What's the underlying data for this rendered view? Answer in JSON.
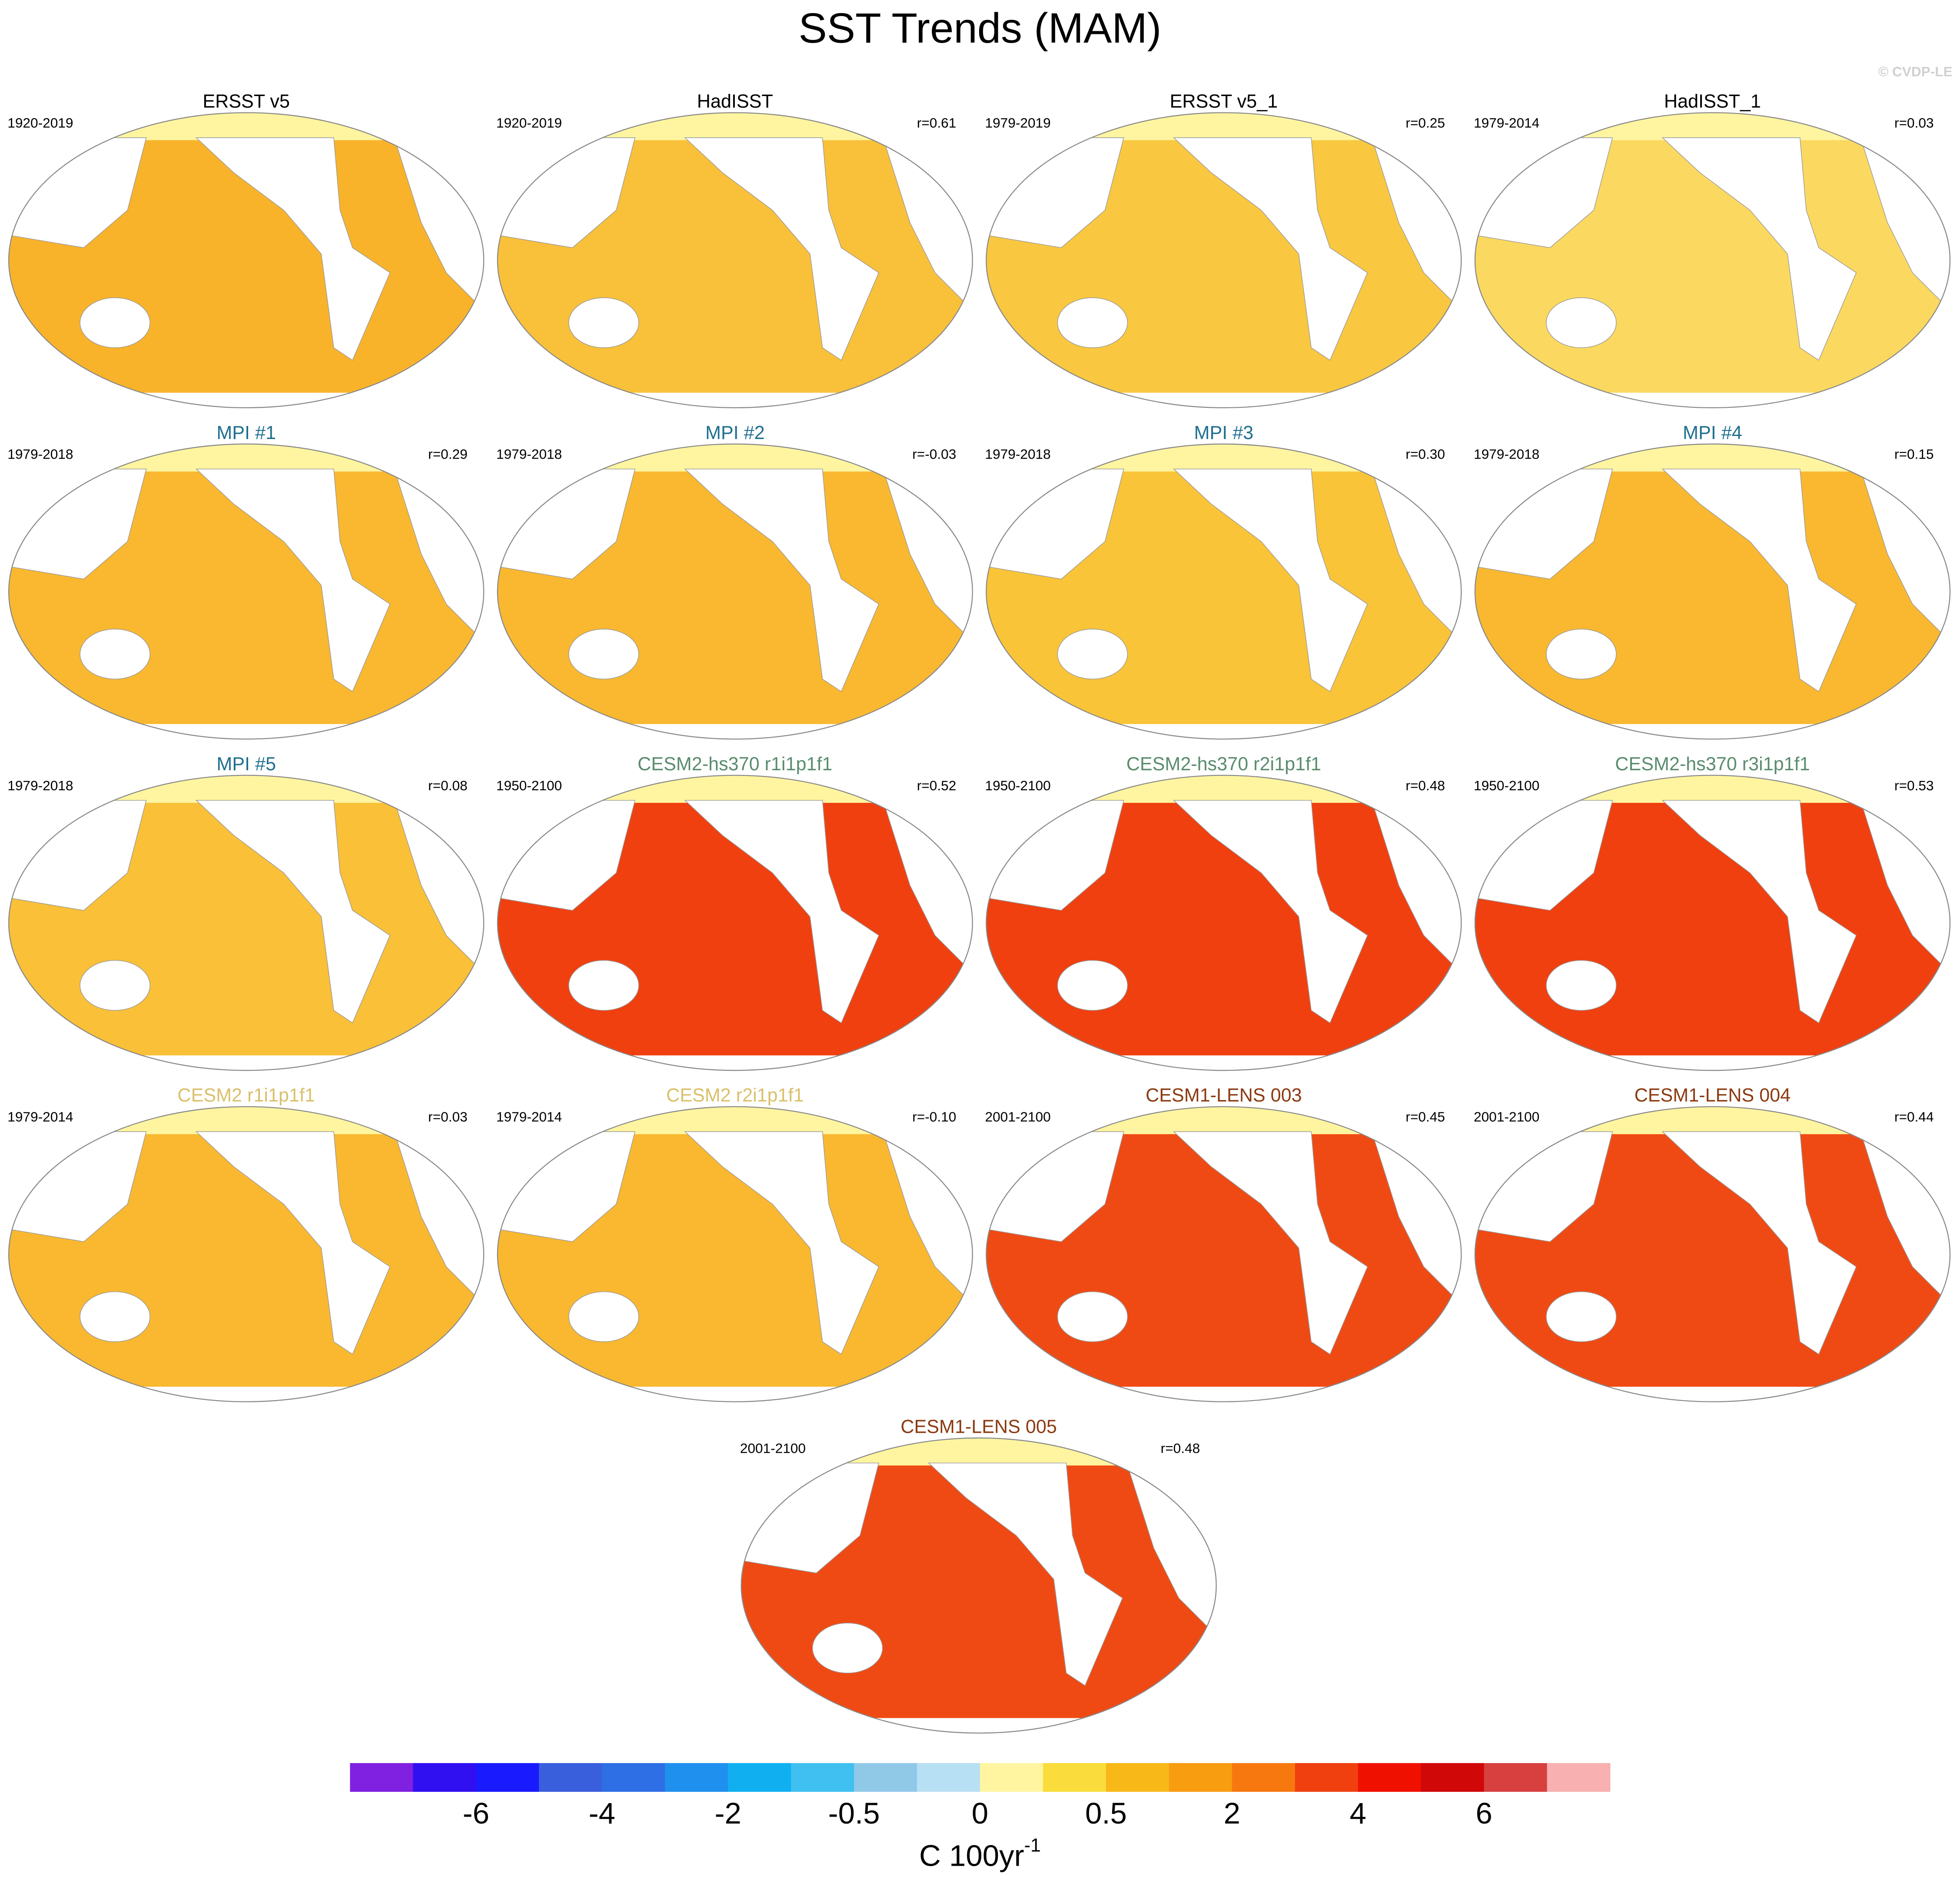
{
  "title": "SST Trends (MAM)",
  "watermark": "© CVDP-LE",
  "panels": [
    {
      "title": "ERSST v5",
      "title_color": "#000000",
      "period": "1920-2019",
      "tone": "#f9b32a"
    },
    {
      "title": "HadISST",
      "title_color": "#000000",
      "period": "1920-2019",
      "r": "r=0.61",
      "tone": "#f9c03a"
    },
    {
      "title": "ERSST v5_1",
      "title_color": "#000000",
      "period": "1979-2019",
      "r": "r=0.25",
      "tone": "#f9c840"
    },
    {
      "title": "HadISST_1",
      "title_color": "#000000",
      "period": "1979-2014",
      "r": "r=0.03",
      "tone": "#fbd860"
    },
    {
      "title": "MPI #1",
      "title_color": "#1f6f8f",
      "period": "1979-2018",
      "r": "r=0.29",
      "tone": "#f9b830"
    },
    {
      "title": "MPI #2",
      "title_color": "#1f6f8f",
      "period": "1979-2018",
      "r": "r=-0.03",
      "tone": "#f9b830"
    },
    {
      "title": "MPI #3",
      "title_color": "#1f6f8f",
      "period": "1979-2018",
      "r": "r=0.30",
      "tone": "#fac438"
    },
    {
      "title": "MPI #4",
      "title_color": "#1f6f8f",
      "period": "1979-2018",
      "r": "r=0.15",
      "tone": "#f9b830"
    },
    {
      "title": "MPI #5",
      "title_color": "#1f6f8f",
      "period": "1979-2018",
      "r": "r=0.08",
      "tone": "#f9c038"
    },
    {
      "title": "CESM2-hs370 r1i1p1f1",
      "title_color": "#5a8c6e",
      "period": "1950-2100",
      "r": "r=0.52",
      "tone": "#f04010"
    },
    {
      "title": "CESM2-hs370 r2i1p1f1",
      "title_color": "#5a8c6e",
      "period": "1950-2100",
      "r": "r=0.48",
      "tone": "#f04010"
    },
    {
      "title": "CESM2-hs370 r3i1p1f1",
      "title_color": "#5a8c6e",
      "period": "1950-2100",
      "r": "r=0.53",
      "tone": "#f04010"
    },
    {
      "title": "CESM2 r1i1p1f1",
      "title_color": "#d9c06a",
      "period": "1979-2014",
      "r": "r=0.03",
      "tone": "#f9b830"
    },
    {
      "title": "CESM2 r2i1p1f1",
      "title_color": "#d9c06a",
      "period": "1979-2014",
      "r": "r=-0.10",
      "tone": "#f9b830"
    },
    {
      "title": "CESM1-LENS 003",
      "title_color": "#8b3a10",
      "period": "2001-2100",
      "r": "r=0.45",
      "tone": "#f04a14"
    },
    {
      "title": "CESM1-LENS 004",
      "title_color": "#8b3a10",
      "period": "2001-2100",
      "r": "r=0.44",
      "tone": "#f04a14"
    },
    {
      "title": "CESM1-LENS 005",
      "title_color": "#8b3a10",
      "period": "2001-2100",
      "r": "r=0.48",
      "tone": "#f04a14"
    }
  ],
  "colorbar": {
    "colors": [
      "#8020e0",
      "#3010f0",
      "#1a1aff",
      "#3a5fdc",
      "#2f6fe6",
      "#2090ee",
      "#10b0f0",
      "#40c0f0",
      "#90c8e8",
      "#b8e0f4",
      "#fff5a0",
      "#fadc3c",
      "#f8b818",
      "#f89c10",
      "#f87810",
      "#f04010",
      "#f01000",
      "#d00808",
      "#d84040",
      "#f8b0b0"
    ],
    "labels": [
      -6,
      -4,
      -2,
      -0.5,
      0,
      0.5,
      2,
      4,
      6
    ],
    "unit": "C 100yr",
    "unit_exponent": "-1"
  }
}
